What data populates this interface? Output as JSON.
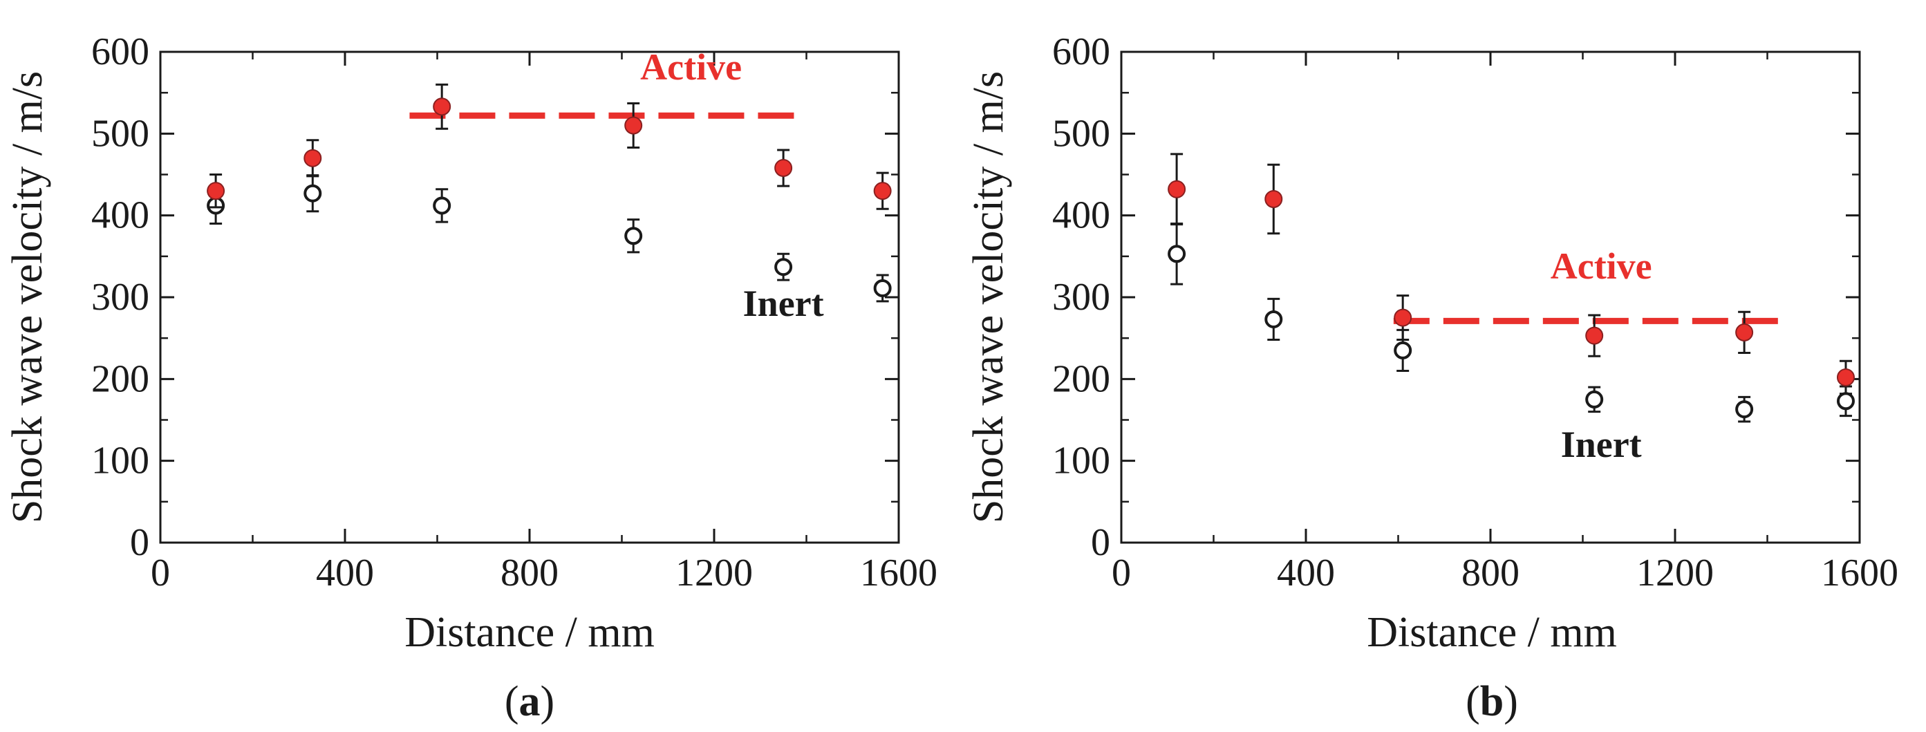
{
  "chart_data": [
    {
      "type": "scatter",
      "panel_label": "a",
      "xlabel": "Distance / mm",
      "ylabel": "Shock wave velocity / m/s",
      "xlim": [
        0,
        1600
      ],
      "ylim": [
        0,
        600
      ],
      "xticks": [
        "0",
        "400",
        "800",
        "1200",
        "1600"
      ],
      "yticks": [
        "0",
        "100",
        "200",
        "300",
        "400",
        "500",
        "600"
      ],
      "series": [
        {
          "name": "Active",
          "color": "#e8302c",
          "x": [
            120,
            330,
            610,
            1025,
            1350,
            1565
          ],
          "y": [
            430,
            470,
            533,
            510,
            458,
            430
          ],
          "err": [
            20,
            22,
            27,
            27,
            22,
            22
          ]
        },
        {
          "name": "Inert",
          "color": "#1a1a1a",
          "x": [
            120,
            330,
            610,
            1025,
            1350,
            1565
          ],
          "y": [
            412,
            427,
            412,
            375,
            337,
            311
          ],
          "err": [
            22,
            22,
            20,
            20,
            16,
            16
          ]
        }
      ],
      "reference_line": {
        "series": "Active",
        "y": 522,
        "x_from": 540,
        "x_to": 1400
      },
      "annotations": [
        {
          "text": "Active",
          "x": 1150,
          "y": 566,
          "color": "#e8302c"
        },
        {
          "text": "Inert",
          "x": 1350,
          "y": 277,
          "color": "#1a1a1a"
        }
      ]
    },
    {
      "type": "scatter",
      "panel_label": "b",
      "xlabel": "Distance / mm",
      "ylabel": "Shock wave velocity / m/s",
      "xlim": [
        0,
        1600
      ],
      "ylim": [
        0,
        600
      ],
      "xticks": [
        "0",
        "400",
        "800",
        "1200",
        "1600"
      ],
      "yticks": [
        "0",
        "100",
        "200",
        "300",
        "400",
        "500",
        "600"
      ],
      "series": [
        {
          "name": "Active",
          "color": "#e8302c",
          "x": [
            120,
            330,
            610,
            1025,
            1350,
            1570
          ],
          "y": [
            432,
            420,
            275,
            253,
            257,
            202
          ],
          "err": [
            43,
            42,
            27,
            25,
            25,
            20
          ]
        },
        {
          "name": "Inert",
          "color": "#1a1a1a",
          "x": [
            120,
            330,
            610,
            1025,
            1350,
            1570
          ],
          "y": [
            353,
            273,
            235,
            175,
            163,
            173
          ],
          "err": [
            37,
            25,
            25,
            15,
            15,
            18
          ]
        }
      ],
      "reference_line": {
        "series": "Active",
        "y": 271,
        "x_from": 590,
        "x_to": 1440
      },
      "annotations": [
        {
          "text": "Active",
          "x": 1040,
          "y": 323,
          "color": "#e8302c"
        },
        {
          "text": "Inert",
          "x": 1040,
          "y": 105,
          "color": "#1a1a1a"
        }
      ]
    }
  ]
}
